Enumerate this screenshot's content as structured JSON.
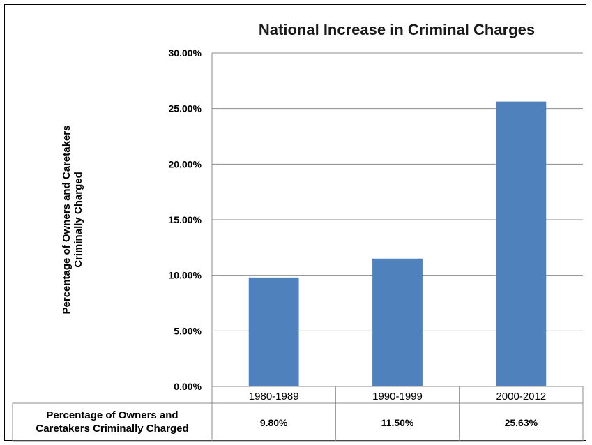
{
  "chart_data": {
    "type": "bar",
    "title": "National Increase in Criminal Charges",
    "ylabel": "Percentage of Owners and Caretakers Criminally Charged",
    "categories": [
      "1980-1989",
      "1990-1999",
      "2000-2012"
    ],
    "values": [
      9.8,
      11.5,
      25.63
    ],
    "ylim": [
      0,
      30
    ],
    "yticks": [
      0,
      5,
      10,
      15,
      20,
      25,
      30
    ],
    "ytick_labels": [
      "0.00%",
      "5.00%",
      "10.00%",
      "15.00%",
      "20.00%",
      "25.00%",
      "30.00%"
    ],
    "grid": true,
    "bar_color": "#4f81bd",
    "data_table": {
      "row_label_lines": [
        "Percentage of Owners and",
        "Caretakers Criminally Charged"
      ],
      "values": [
        "9.80%",
        "11.50%",
        "25.63%"
      ]
    }
  }
}
